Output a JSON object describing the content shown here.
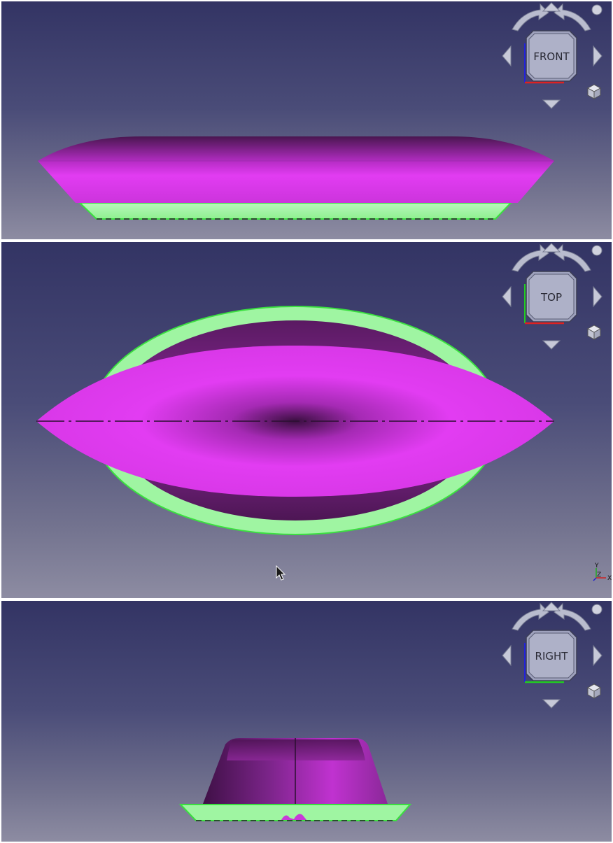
{
  "views": {
    "front": {
      "cube_label": "FRONT"
    },
    "top": {
      "cube_label": "TOP"
    },
    "right": {
      "cube_label": "RIGHT"
    }
  },
  "axis_indicator": {
    "y": "Y",
    "z": "Z",
    "x": "X"
  },
  "colors": {
    "background_top": "#333464",
    "background_bottom": "#8d8ca2",
    "model_primary": "#e23cf2",
    "model_dark": "#4a1650",
    "model_flange": "#9ff5a2",
    "flange_edge": "#3be040",
    "axis_x": "#dd2222",
    "axis_y": "#22cc22",
    "axis_z": "#2222dd"
  },
  "icons": [
    "navigation-cube-icon",
    "rotate-left-icon",
    "rotate-right-icon",
    "arrow-up-icon",
    "arrow-down-icon",
    "arrow-left-icon",
    "arrow-right-icon",
    "view-menu-icon",
    "isometric-cube-icon",
    "mouse-cursor-icon"
  ]
}
